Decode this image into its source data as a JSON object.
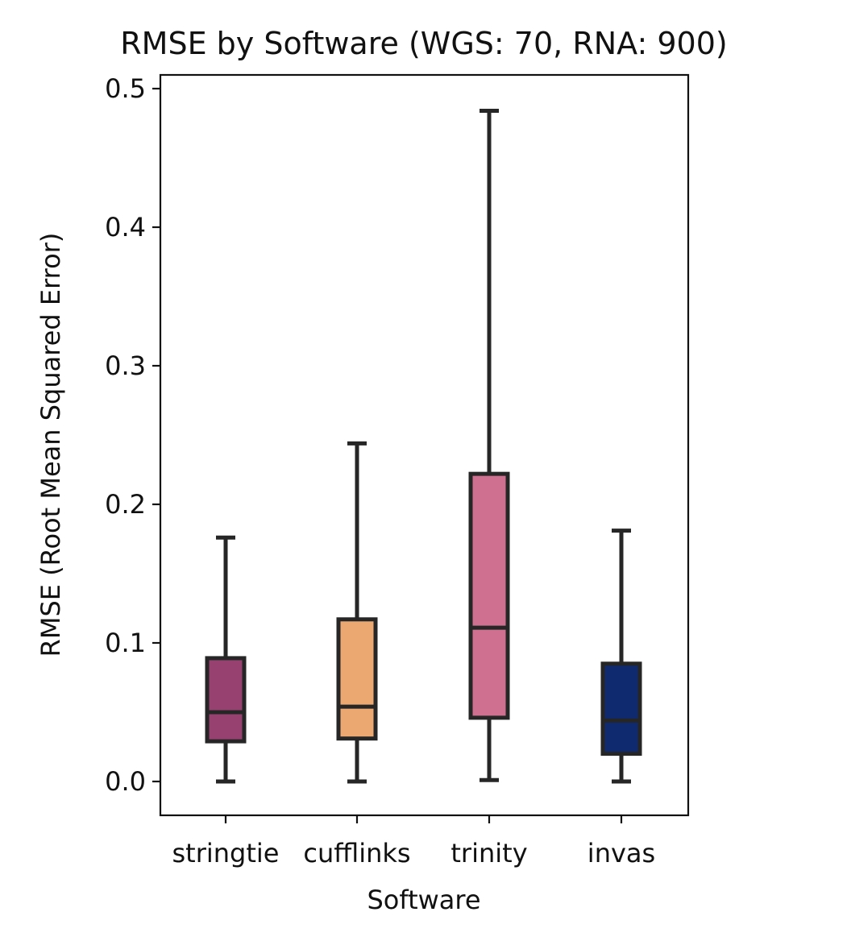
{
  "chart_data": {
    "type": "box",
    "title": "RMSE by Software (WGS: 70, RNA: 900)",
    "xlabel": "Software",
    "ylabel": "RMSE (Root Mean Squared Error)",
    "ylim": [
      -0.025,
      0.508
    ],
    "yticks": [
      0.0,
      0.1,
      0.2,
      0.3,
      0.4,
      0.5
    ],
    "yticklabels": [
      "0.0",
      "0.1",
      "0.2",
      "0.3",
      "0.4",
      "0.5"
    ],
    "grid": false,
    "categories": [
      "stringtie",
      "cufflinks",
      "trinity",
      "invas"
    ],
    "boxes": [
      {
        "category": "stringtie",
        "whisker_low": 0.0,
        "q1": 0.029,
        "median": 0.05,
        "q3": 0.089,
        "whisker_high": 0.176,
        "color": "#96416f"
      },
      {
        "category": "cufflinks",
        "whisker_low": 0.0,
        "q1": 0.031,
        "median": 0.054,
        "q3": 0.117,
        "whisker_high": 0.244,
        "color": "#eba871"
      },
      {
        "category": "trinity",
        "whisker_low": 0.001,
        "q1": 0.046,
        "median": 0.111,
        "q3": 0.222,
        "whisker_high": 0.484,
        "color": "#d07090"
      },
      {
        "category": "invas",
        "whisker_low": 0.0,
        "q1": 0.02,
        "median": 0.044,
        "q3": 0.085,
        "whisker_high": 0.181,
        "color": "#0f2a6e"
      }
    ]
  }
}
